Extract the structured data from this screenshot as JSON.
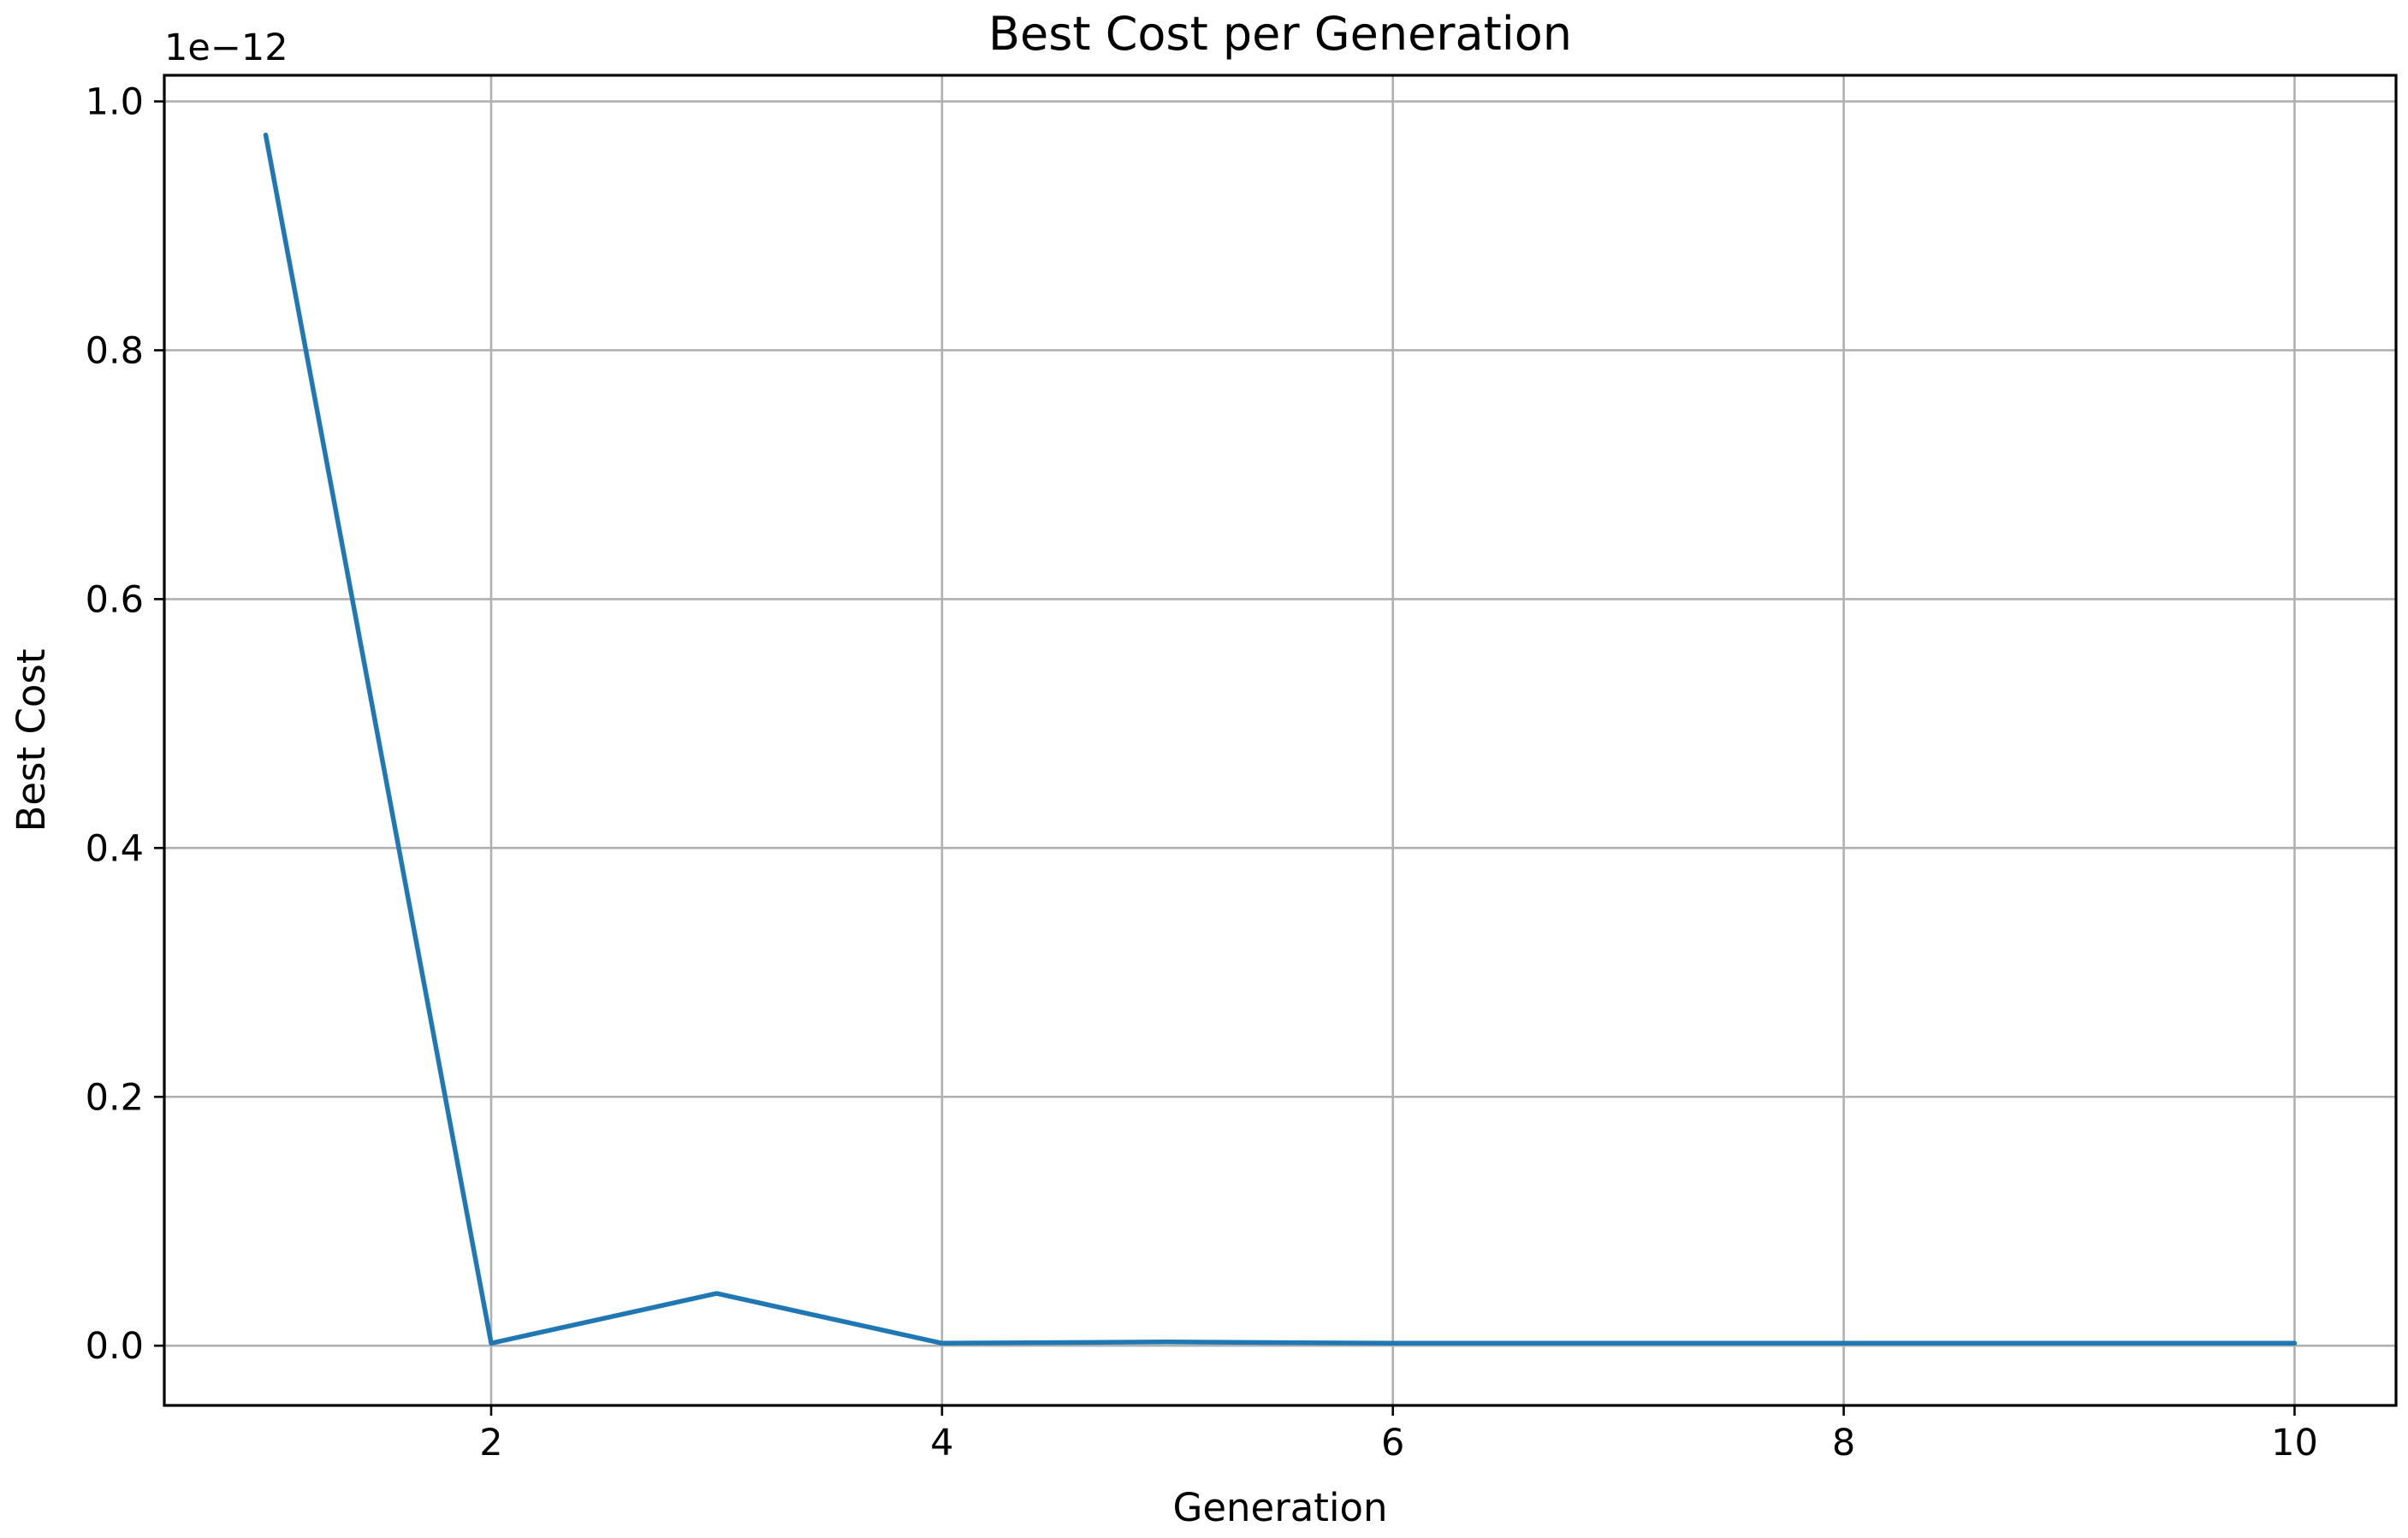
{
  "chart_data": {
    "type": "line",
    "title": "Best Cost per Generation",
    "xlabel": "Generation",
    "ylabel": "Best Cost",
    "y_offset_label": "1e−12",
    "x": [
      1,
      2,
      3,
      4,
      5,
      6,
      7,
      8,
      9,
      10
    ],
    "series": [
      {
        "values": [
          9.73e-13,
          2e-15,
          4.2e-14,
          2e-15,
          3e-15,
          2e-15,
          2e-15,
          2e-15,
          2e-15,
          2e-15
        ]
      }
    ],
    "xlim": [
      0.55,
      10.45
    ],
    "ylim": [
      -4.8e-14,
      1.021e-12
    ],
    "x_ticks": [
      2,
      4,
      6,
      8,
      10
    ],
    "x_tick_labels": [
      "2",
      "4",
      "6",
      "8",
      "10"
    ],
    "y_ticks": [
      0.0,
      2e-13,
      4e-13,
      6e-13,
      8e-13,
      1e-12
    ],
    "y_tick_labels": [
      "0.0",
      "0.2",
      "0.4",
      "0.6",
      "0.8",
      "1.0"
    ],
    "grid": true,
    "legend": "none",
    "colors": {
      "line": "#1f77b4",
      "grid": "#b0b0b0",
      "axes": "#000000"
    }
  }
}
